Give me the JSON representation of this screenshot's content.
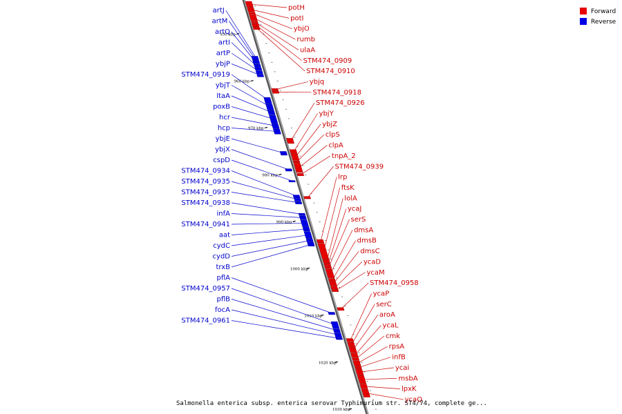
{
  "legend": {
    "forward_label": "Forward",
    "reverse_label": "Reverse",
    "forward_color": "#e60000",
    "reverse_color": "#0000e6"
  },
  "caption": "Salmonella enterica subsp. enterica serovar Typhimurium str. ST4/74, complete ge...",
  "colors": {
    "backbone": "#777777",
    "forward_label": "#cc0000",
    "reverse_label": "#0000cc"
  },
  "scale_marks": [
    {
      "label": "950 kbp",
      "position": 950
    },
    {
      "label": "960 kbp",
      "position": 960
    },
    {
      "label": "970 kbp",
      "position": 970
    },
    {
      "label": "980 kbp",
      "position": 980
    },
    {
      "label": "990 kbp",
      "position": 990
    },
    {
      "label": "1000 kbp",
      "position": 1000
    },
    {
      "label": "1010 kbp",
      "position": 1010
    },
    {
      "label": "1020 kbp",
      "position": 1020
    },
    {
      "label": "1030 kbp",
      "position": 1030
    }
  ],
  "forward_genes": [
    {
      "name": "potH",
      "start": 943.0,
      "end": 944.2
    },
    {
      "name": "potI",
      "start": 944.3,
      "end": 945.2
    },
    {
      "name": "ybjO",
      "start": 945.3,
      "end": 945.8
    },
    {
      "name": "rumb",
      "start": 945.9,
      "end": 947.1
    },
    {
      "name": "ulaA",
      "start": 947.2,
      "end": 947.6
    },
    {
      "name": "STM474_0909",
      "start": 947.7,
      "end": 948.4
    },
    {
      "name": "STM474_0910",
      "start": 948.5,
      "end": 949.0
    },
    {
      "name": "ybjq",
      "start": 961.6,
      "end": 962.0
    },
    {
      "name": "STM474_0918",
      "start": 962.1,
      "end": 962.6
    },
    {
      "name": "STM474_0926",
      "start": 972.2,
      "end": 973.3
    },
    {
      "name": "ybjY",
      "start": 974.6,
      "end": 975.4
    },
    {
      "name": "ybjZ",
      "start": 975.5,
      "end": 976.9
    },
    {
      "name": "clpS",
      "start": 977.0,
      "end": 977.4
    },
    {
      "name": "clpA",
      "start": 977.5,
      "end": 979.5
    },
    {
      "name": "tnpA_2",
      "start": 979.7,
      "end": 980.2
    },
    {
      "name": "STM474_0939",
      "start": 984.6,
      "end": 985.1
    },
    {
      "name": "lrp",
      "start": 993.8,
      "end": 994.5
    },
    {
      "name": "ftsK",
      "start": 994.6,
      "end": 998.0
    },
    {
      "name": "lolA",
      "start": 998.1,
      "end": 998.8
    },
    {
      "name": "ycaJ",
      "start": 998.9,
      "end": 999.4
    },
    {
      "name": "serS",
      "start": 999.5,
      "end": 1000.0
    },
    {
      "name": "dmsA",
      "start": 1000.1,
      "end": 1002.0
    },
    {
      "name": "dmsB",
      "start": 1002.1,
      "end": 1002.7
    },
    {
      "name": "dmsC",
      "start": 1002.8,
      "end": 1003.6
    },
    {
      "name": "ycaD",
      "start": 1003.7,
      "end": 1004.4
    },
    {
      "name": "ycaM",
      "start": 1004.5,
      "end": 1004.9
    },
    {
      "name": "STM474_0958",
      "start": 1008.3,
      "end": 1008.9
    },
    {
      "name": "ycaP",
      "start": 1014.9,
      "end": 1015.6
    },
    {
      "name": "serC",
      "start": 1015.7,
      "end": 1016.6
    },
    {
      "name": "aroA",
      "start": 1016.7,
      "end": 1017.9
    },
    {
      "name": "ycaL",
      "start": 1018.0,
      "end": 1018.9
    },
    {
      "name": "cmk",
      "start": 1019.0,
      "end": 1019.5
    },
    {
      "name": "rpsA",
      "start": 1019.6,
      "end": 1020.8
    },
    {
      "name": "infB",
      "start": 1020.9,
      "end": 1021.3
    },
    {
      "name": "ycai",
      "start": 1021.4,
      "end": 1022.7
    },
    {
      "name": "msbA",
      "start": 1022.8,
      "end": 1024.5
    },
    {
      "name": "lpxK",
      "start": 1024.6,
      "end": 1025.6
    },
    {
      "name": "ycaQ",
      "start": 1025.7,
      "end": 1027.4
    }
  ],
  "reverse_genes": [
    {
      "name": "artJ",
      "start": 954.7,
      "end": 955.6
    },
    {
      "name": "artM",
      "start": 955.7,
      "end": 956.3
    },
    {
      "name": "artQ",
      "start": 956.4,
      "end": 957.0
    },
    {
      "name": "artI",
      "start": 957.1,
      "end": 957.7
    },
    {
      "name": "artP",
      "start": 957.8,
      "end": 958.5
    },
    {
      "name": "ybjP",
      "start": 958.6,
      "end": 959.1
    },
    {
      "name": "STM474_0919",
      "start": 963.5,
      "end": 964.8
    },
    {
      "name": "ybjT",
      "start": 964.9,
      "end": 966.2
    },
    {
      "name": "ltaA",
      "start": 966.3,
      "end": 967.2
    },
    {
      "name": "poxB",
      "start": 967.3,
      "end": 969.0
    },
    {
      "name": "hcr",
      "start": 969.1,
      "end": 970.1
    },
    {
      "name": "hcp",
      "start": 970.2,
      "end": 971.3
    },
    {
      "name": "ybjE",
      "start": 975.0,
      "end": 975.8
    },
    {
      "name": "ybjX",
      "start": 978.7,
      "end": 979.2
    },
    {
      "name": "cspD",
      "start": 981.2,
      "end": 981.5
    },
    {
      "name": "STM474_0934",
      "start": 984.3,
      "end": 984.9
    },
    {
      "name": "STM474_0935",
      "start": 985.0,
      "end": 985.6
    },
    {
      "name": "STM474_0937",
      "start": 985.7,
      "end": 986.2
    },
    {
      "name": "STM474_0938",
      "start": 988.2,
      "end": 988.7
    },
    {
      "name": "infA",
      "start": 988.8,
      "end": 989.5
    },
    {
      "name": "STM474_0941",
      "start": 989.6,
      "end": 991.0
    },
    {
      "name": "aat",
      "start": 991.1,
      "end": 992.0
    },
    {
      "name": "cydC",
      "start": 992.1,
      "end": 993.5
    },
    {
      "name": "cydD",
      "start": 993.6,
      "end": 994.3
    },
    {
      "name": "trxB",
      "start": 994.4,
      "end": 995.2
    },
    {
      "name": "pflA",
      "start": 1009.3,
      "end": 1009.8
    },
    {
      "name": "STM474_0957",
      "start": 1011.3,
      "end": 1012.8
    },
    {
      "name": "pflB",
      "start": 1012.9,
      "end": 1013.6
    },
    {
      "name": "focA",
      "start": 1013.7,
      "end": 1014.7
    },
    {
      "name": "STM474_0961",
      "start": 1014.8,
      "end": 1015.0
    }
  ]
}
